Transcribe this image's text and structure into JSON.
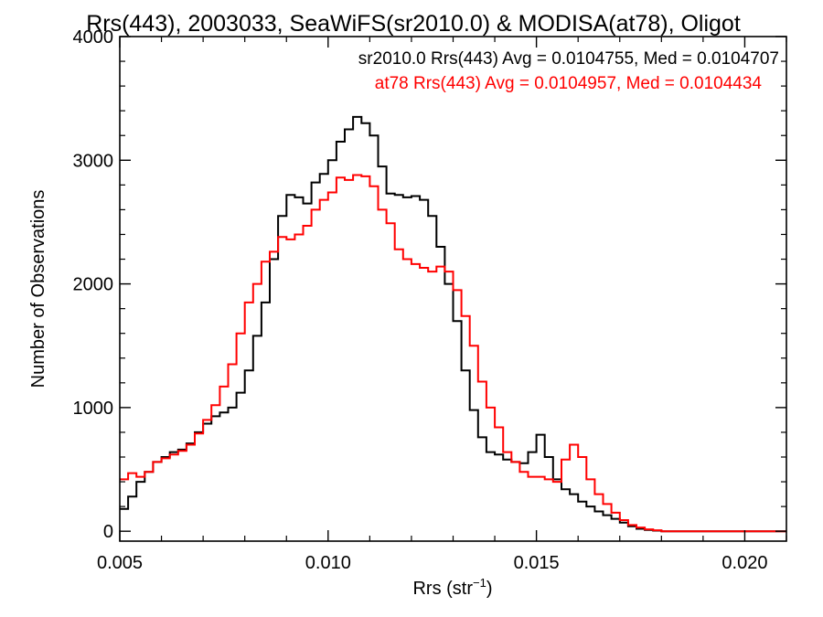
{
  "chart_data": {
    "type": "line",
    "title": "Rrs(443), 2003033, SeaWiFS(sr2010.0) & MODISA(at78), Oligot",
    "xlabel": "Rrs (str",
    "xlabel_sup": "−1",
    "xlabel_close": ")",
    "ylabel": "Number of Observations",
    "xlim": [
      0.005,
      0.021
    ],
    "ylim": [
      -80,
      4000
    ],
    "xticks": [
      0.005,
      0.01,
      0.015,
      0.02
    ],
    "xtick_labels": [
      "0.005",
      "0.010",
      "0.015",
      "0.020"
    ],
    "yticks": [
      0,
      1000,
      2000,
      3000,
      4000
    ],
    "ytick_labels": [
      "0",
      "1000",
      "2000",
      "3000",
      "4000"
    ],
    "grid": false,
    "legend_position": "top-right",
    "legend": [
      {
        "text": "sr2010.0 Rrs(443) Avg = 0.0104755, Med = 0.0104707",
        "color": "#000000"
      },
      {
        "text": "at78 Rrs(443) Avg = 0.0104957, Med = 0.0104434",
        "color": "#ff0000"
      }
    ],
    "series": [
      {
        "color": "#000000",
        "points": [
          [
            0.005,
            180
          ],
          [
            0.0052,
            280
          ],
          [
            0.0054,
            400
          ],
          [
            0.0056,
            480
          ],
          [
            0.0058,
            560
          ],
          [
            0.006,
            600
          ],
          [
            0.0062,
            640
          ],
          [
            0.0064,
            660
          ],
          [
            0.0066,
            710
          ],
          [
            0.0068,
            800
          ],
          [
            0.007,
            870
          ],
          [
            0.0072,
            930
          ],
          [
            0.0074,
            960
          ],
          [
            0.0076,
            1000
          ],
          [
            0.0078,
            1120
          ],
          [
            0.008,
            1300
          ],
          [
            0.0082,
            1580
          ],
          [
            0.0084,
            1850
          ],
          [
            0.0086,
            2200
          ],
          [
            0.0088,
            2550
          ],
          [
            0.009,
            2720
          ],
          [
            0.0092,
            2700
          ],
          [
            0.0094,
            2650
          ],
          [
            0.0096,
            2820
          ],
          [
            0.0098,
            2890
          ],
          [
            0.01,
            3000
          ],
          [
            0.0102,
            3150
          ],
          [
            0.0104,
            3250
          ],
          [
            0.0106,
            3350
          ],
          [
            0.0108,
            3300
          ],
          [
            0.011,
            3200
          ],
          [
            0.0112,
            2950
          ],
          [
            0.0114,
            2730
          ],
          [
            0.0116,
            2720
          ],
          [
            0.0118,
            2700
          ],
          [
            0.012,
            2710
          ],
          [
            0.0122,
            2680
          ],
          [
            0.0124,
            2550
          ],
          [
            0.0126,
            2300
          ],
          [
            0.0128,
            2000
          ],
          [
            0.013,
            1700
          ],
          [
            0.0132,
            1300
          ],
          [
            0.0134,
            980
          ],
          [
            0.0136,
            760
          ],
          [
            0.0138,
            640
          ],
          [
            0.014,
            620
          ],
          [
            0.0142,
            580
          ],
          [
            0.0144,
            560
          ],
          [
            0.0146,
            550
          ],
          [
            0.0148,
            640
          ],
          [
            0.015,
            780
          ],
          [
            0.0152,
            600
          ],
          [
            0.0154,
            420
          ],
          [
            0.0156,
            340
          ],
          [
            0.0158,
            300
          ],
          [
            0.016,
            240
          ],
          [
            0.0162,
            200
          ],
          [
            0.0164,
            160
          ],
          [
            0.0166,
            130
          ],
          [
            0.0168,
            100
          ],
          [
            0.017,
            70
          ],
          [
            0.0172,
            40
          ],
          [
            0.0174,
            20
          ],
          [
            0.0176,
            10
          ],
          [
            0.0178,
            5
          ],
          [
            0.018,
            0
          ],
          [
            0.021,
            0
          ]
        ]
      },
      {
        "color": "#ff0000",
        "points": [
          [
            0.005,
            420
          ],
          [
            0.0052,
            470
          ],
          [
            0.0054,
            440
          ],
          [
            0.0056,
            480
          ],
          [
            0.0058,
            560
          ],
          [
            0.006,
            590
          ],
          [
            0.0062,
            620
          ],
          [
            0.0064,
            650
          ],
          [
            0.0066,
            700
          ],
          [
            0.0068,
            790
          ],
          [
            0.007,
            900
          ],
          [
            0.0072,
            1020
          ],
          [
            0.0074,
            1170
          ],
          [
            0.0076,
            1350
          ],
          [
            0.0078,
            1600
          ],
          [
            0.008,
            1850
          ],
          [
            0.0082,
            2000
          ],
          [
            0.0084,
            2180
          ],
          [
            0.0086,
            2260
          ],
          [
            0.0088,
            2380
          ],
          [
            0.009,
            2360
          ],
          [
            0.0092,
            2400
          ],
          [
            0.0094,
            2470
          ],
          [
            0.0096,
            2600
          ],
          [
            0.0098,
            2680
          ],
          [
            0.01,
            2740
          ],
          [
            0.0102,
            2860
          ],
          [
            0.0104,
            2840
          ],
          [
            0.0106,
            2880
          ],
          [
            0.0108,
            2870
          ],
          [
            0.011,
            2790
          ],
          [
            0.0112,
            2600
          ],
          [
            0.0114,
            2490
          ],
          [
            0.0116,
            2280
          ],
          [
            0.0118,
            2200
          ],
          [
            0.012,
            2160
          ],
          [
            0.0122,
            2130
          ],
          [
            0.0124,
            2100
          ],
          [
            0.0126,
            2140
          ],
          [
            0.0128,
            2100
          ],
          [
            0.013,
            1950
          ],
          [
            0.0132,
            1740
          ],
          [
            0.0134,
            1500
          ],
          [
            0.0136,
            1210
          ],
          [
            0.0138,
            1000
          ],
          [
            0.014,
            840
          ],
          [
            0.0142,
            640
          ],
          [
            0.0144,
            560
          ],
          [
            0.0146,
            480
          ],
          [
            0.0148,
            440
          ],
          [
            0.015,
            440
          ],
          [
            0.0152,
            420
          ],
          [
            0.0154,
            400
          ],
          [
            0.0156,
            580
          ],
          [
            0.0158,
            700
          ],
          [
            0.016,
            600
          ],
          [
            0.0162,
            420
          ],
          [
            0.0164,
            300
          ],
          [
            0.0166,
            220
          ],
          [
            0.0168,
            150
          ],
          [
            0.017,
            90
          ],
          [
            0.0172,
            50
          ],
          [
            0.0174,
            30
          ],
          [
            0.0176,
            15
          ],
          [
            0.0178,
            8
          ],
          [
            0.018,
            0
          ],
          [
            0.021,
            0
          ]
        ]
      }
    ]
  }
}
